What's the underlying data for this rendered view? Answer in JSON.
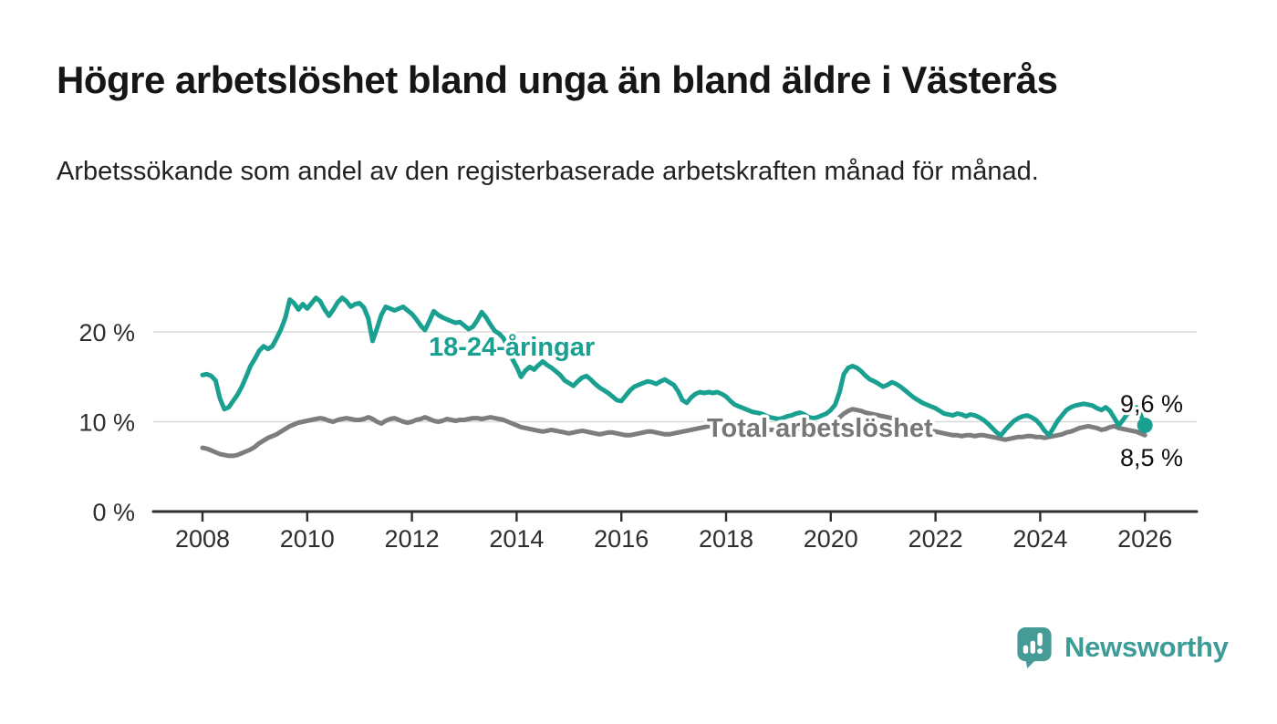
{
  "page": {
    "title": "Högre arbetslöshet bland unga än bland äldre i Västerås",
    "subtitle": "Arbetssökande som andel av den registerbaserade arbetskraften månad för månad."
  },
  "branding": {
    "logo_text": "Newsworthy",
    "logo_icon": "speech-bubble-bar-chart-exclamation-icon",
    "brand_teal": "#3c9d97"
  },
  "colors": {
    "youth_line": "#19a091",
    "total_line": "#7d7d80",
    "grid": "#d9d9d9",
    "axis": "#2e2e2e",
    "text": "#161616"
  },
  "chart_data": {
    "type": "line",
    "title": "Högre arbetslöshet bland unga än bland äldre i Västerås",
    "subtitle": "Arbetssökande som andel av den registerbaserade arbetskraften månad för månad.",
    "unit": "%",
    "x_start_year": 2008,
    "x_points_per_year": 12,
    "x_end_label_year": 2026,
    "xticks": [
      2008,
      2010,
      2012,
      2014,
      2016,
      2018,
      2020,
      2022,
      2024,
      2026
    ],
    "yticks": [
      {
        "value": 0,
        "label": "0 %"
      },
      {
        "value": 10,
        "label": "10 %"
      },
      {
        "value": 20,
        "label": "20 %"
      }
    ],
    "ylim": [
      0,
      26
    ],
    "grid": "horizontal-only",
    "legend_position": "inline-labels-on-lines",
    "series": [
      {
        "name": "18-24-åringar",
        "color": "#19a091",
        "end_label": "9,6 %",
        "end_value": 9.6,
        "end_marker": "dot",
        "values": [
          15.2,
          15.3,
          15.1,
          14.6,
          12.6,
          11.4,
          11.6,
          12.3,
          13.0,
          13.9,
          15.0,
          16.2,
          17.0,
          17.9,
          18.4,
          18.1,
          18.4,
          19.3,
          20.3,
          21.6,
          23.6,
          23.2,
          22.5,
          23.1,
          22.6,
          23.2,
          23.8,
          23.4,
          22.5,
          21.8,
          22.5,
          23.3,
          23.8,
          23.4,
          22.8,
          23.1,
          23.2,
          22.7,
          21.5,
          19.0,
          20.4,
          21.9,
          22.8,
          22.6,
          22.4,
          22.6,
          22.8,
          22.4,
          22.0,
          21.4,
          20.7,
          20.2,
          21.2,
          22.3,
          21.9,
          21.6,
          21.4,
          21.2,
          21.0,
          21.1,
          20.7,
          20.3,
          20.6,
          21.3,
          22.2,
          21.6,
          20.8,
          20.1,
          19.8,
          19.3,
          18.2,
          17.0,
          16.1,
          15.0,
          15.7,
          16.1,
          15.8,
          16.3,
          16.7,
          16.3,
          16.0,
          15.6,
          15.2,
          14.6,
          14.3,
          14.0,
          14.5,
          14.9,
          15.1,
          14.7,
          14.2,
          13.8,
          13.5,
          13.2,
          12.8,
          12.4,
          12.3,
          12.9,
          13.5,
          13.9,
          14.1,
          14.3,
          14.5,
          14.4,
          14.2,
          14.5,
          14.7,
          14.4,
          14.1,
          13.4,
          12.4,
          12.1,
          12.7,
          13.1,
          13.3,
          13.2,
          13.3,
          13.2,
          13.3,
          13.1,
          12.8,
          12.3,
          11.9,
          11.7,
          11.5,
          11.3,
          11.1,
          11.0,
          10.9,
          10.7,
          10.5,
          10.4,
          10.3,
          10.4,
          10.6,
          10.7,
          10.9,
          11.0,
          10.8,
          10.5,
          10.4,
          10.5,
          10.7,
          10.9,
          11.3,
          11.9,
          13.3,
          15.3,
          16.0,
          16.2,
          16.0,
          15.6,
          15.1,
          14.7,
          14.5,
          14.2,
          13.9,
          14.1,
          14.4,
          14.2,
          13.9,
          13.5,
          13.1,
          12.7,
          12.4,
          12.1,
          11.9,
          11.7,
          11.5,
          11.2,
          10.9,
          10.8,
          10.7,
          10.9,
          10.8,
          10.6,
          10.8,
          10.7,
          10.5,
          10.2,
          9.8,
          9.3,
          8.8,
          8.5,
          9.1,
          9.6,
          10.1,
          10.4,
          10.6,
          10.7,
          10.5,
          10.2,
          9.7,
          9.0,
          8.5,
          9.3,
          10.1,
          10.7,
          11.3,
          11.6,
          11.8,
          11.9,
          12.0,
          11.9,
          11.8,
          11.5,
          11.3,
          11.6,
          11.2,
          10.4,
          9.6,
          10.2,
          10.9,
          11.5,
          11.6,
          10.8,
          9.6
        ]
      },
      {
        "name": "Total arbetslöshet",
        "color": "#7d7d80",
        "end_label": "8,5 %",
        "end_value": 8.5,
        "end_marker": "none",
        "values": [
          7.1,
          7.0,
          6.8,
          6.6,
          6.4,
          6.3,
          6.2,
          6.2,
          6.3,
          6.5,
          6.7,
          6.9,
          7.2,
          7.6,
          7.9,
          8.2,
          8.4,
          8.6,
          8.9,
          9.2,
          9.5,
          9.7,
          9.9,
          10.0,
          10.1,
          10.2,
          10.3,
          10.4,
          10.3,
          10.1,
          10.0,
          10.2,
          10.3,
          10.4,
          10.3,
          10.2,
          10.2,
          10.3,
          10.5,
          10.3,
          10.0,
          9.8,
          10.1,
          10.3,
          10.4,
          10.2,
          10.0,
          9.9,
          10.0,
          10.2,
          10.3,
          10.5,
          10.3,
          10.1,
          10.0,
          10.1,
          10.3,
          10.2,
          10.1,
          10.2,
          10.2,
          10.3,
          10.4,
          10.4,
          10.3,
          10.4,
          10.5,
          10.4,
          10.3,
          10.2,
          10.0,
          9.8,
          9.6,
          9.4,
          9.3,
          9.2,
          9.1,
          9.0,
          8.9,
          9.0,
          9.1,
          9.0,
          8.9,
          8.8,
          8.7,
          8.8,
          8.9,
          9.0,
          8.9,
          8.8,
          8.7,
          8.6,
          8.7,
          8.8,
          8.8,
          8.7,
          8.6,
          8.5,
          8.5,
          8.6,
          8.7,
          8.8,
          8.9,
          8.9,
          8.8,
          8.7,
          8.6,
          8.6,
          8.7,
          8.8,
          8.9,
          9.0,
          9.1,
          9.2,
          9.3,
          9.4,
          9.5,
          9.5,
          9.4,
          9.4,
          9.5,
          9.4,
          9.3,
          9.3,
          9.2,
          9.2,
          9.1,
          9.1,
          9.0,
          9.0,
          9.1,
          9.1,
          9.0,
          9.0,
          9.1,
          9.1,
          9.2,
          9.2,
          9.3,
          9.2,
          9.2,
          9.3,
          9.4,
          9.5,
          9.7,
          10.0,
          10.5,
          10.9,
          11.2,
          11.4,
          11.3,
          11.2,
          11.0,
          10.9,
          10.8,
          10.7,
          10.6,
          10.5,
          10.4,
          10.2,
          10.0,
          9.8,
          9.6,
          9.5,
          9.4,
          9.3,
          9.1,
          9.0,
          8.9,
          8.8,
          8.7,
          8.6,
          8.5,
          8.5,
          8.4,
          8.5,
          8.5,
          8.4,
          8.5,
          8.5,
          8.4,
          8.3,
          8.2,
          8.1,
          8.0,
          8.1,
          8.2,
          8.3,
          8.3,
          8.4,
          8.4,
          8.3,
          8.3,
          8.2,
          8.3,
          8.4,
          8.5,
          8.6,
          8.8,
          8.9,
          9.1,
          9.3,
          9.4,
          9.5,
          9.4,
          9.3,
          9.1,
          9.2,
          9.4,
          9.5,
          9.3,
          9.2,
          9.1,
          9.0,
          8.9,
          8.7,
          8.5
        ]
      }
    ]
  }
}
